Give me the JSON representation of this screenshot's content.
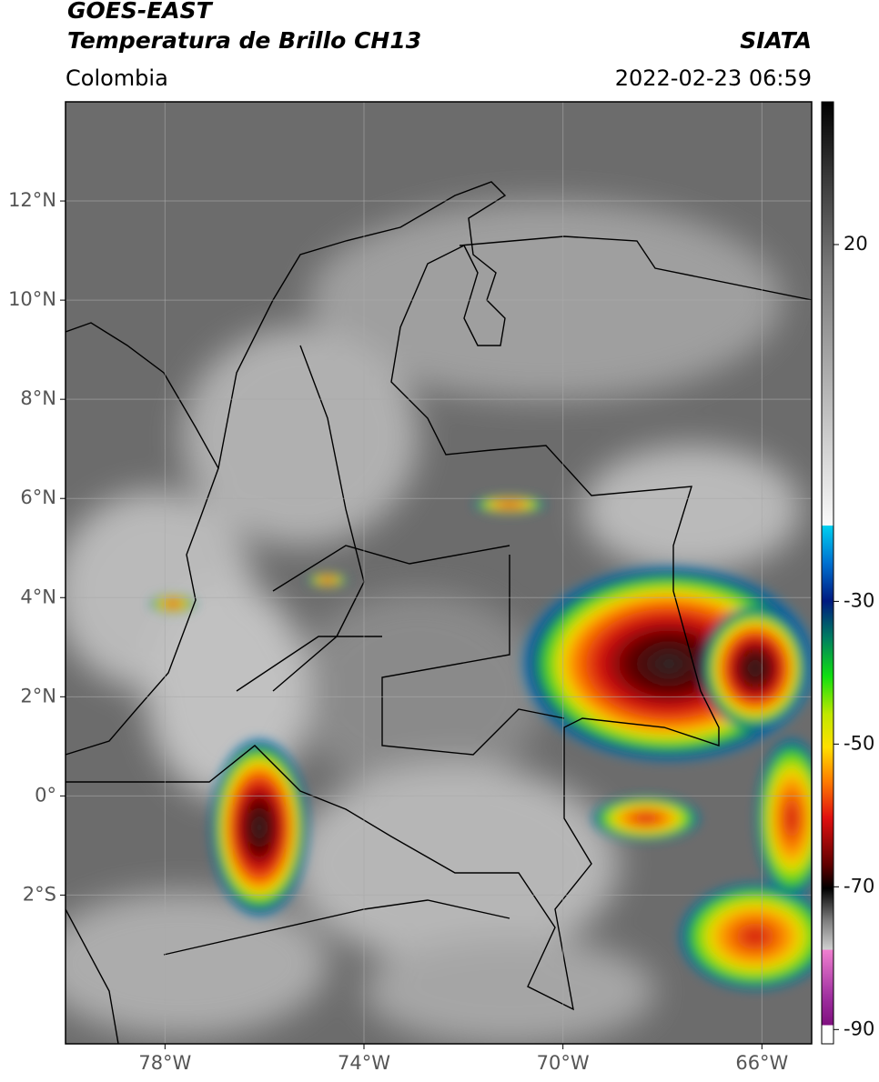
{
  "header": {
    "title_line1": "GOES-EAST",
    "title_line2": "Temperatura de Brillo CH13",
    "region": "Colombia",
    "source": "SIATA",
    "timestamp": "2022-02-23 06:59"
  },
  "map": {
    "xlim": [
      -80,
      -65
    ],
    "ylim": [
      -5,
      14
    ],
    "xticks": [
      {
        "value": -78,
        "label": "78°W"
      },
      {
        "value": -74,
        "label": "74°W"
      },
      {
        "value": -70,
        "label": "70°W"
      },
      {
        "value": -66,
        "label": "66°W"
      }
    ],
    "yticks": [
      {
        "value": 12,
        "label": "12°N"
      },
      {
        "value": 10,
        "label": "10°N"
      },
      {
        "value": 8,
        "label": "8°N"
      },
      {
        "value": 6,
        "label": "6°N"
      },
      {
        "value": 4,
        "label": "4°N"
      },
      {
        "value": 2,
        "label": "2°N"
      },
      {
        "value": 0,
        "label": "0°"
      },
      {
        "value": -2,
        "label": "2°S"
      }
    ]
  },
  "colorbar": {
    "lim": [
      -92,
      40
    ],
    "ticks": [
      20,
      -30,
      -50,
      -70,
      -90
    ]
  }
}
